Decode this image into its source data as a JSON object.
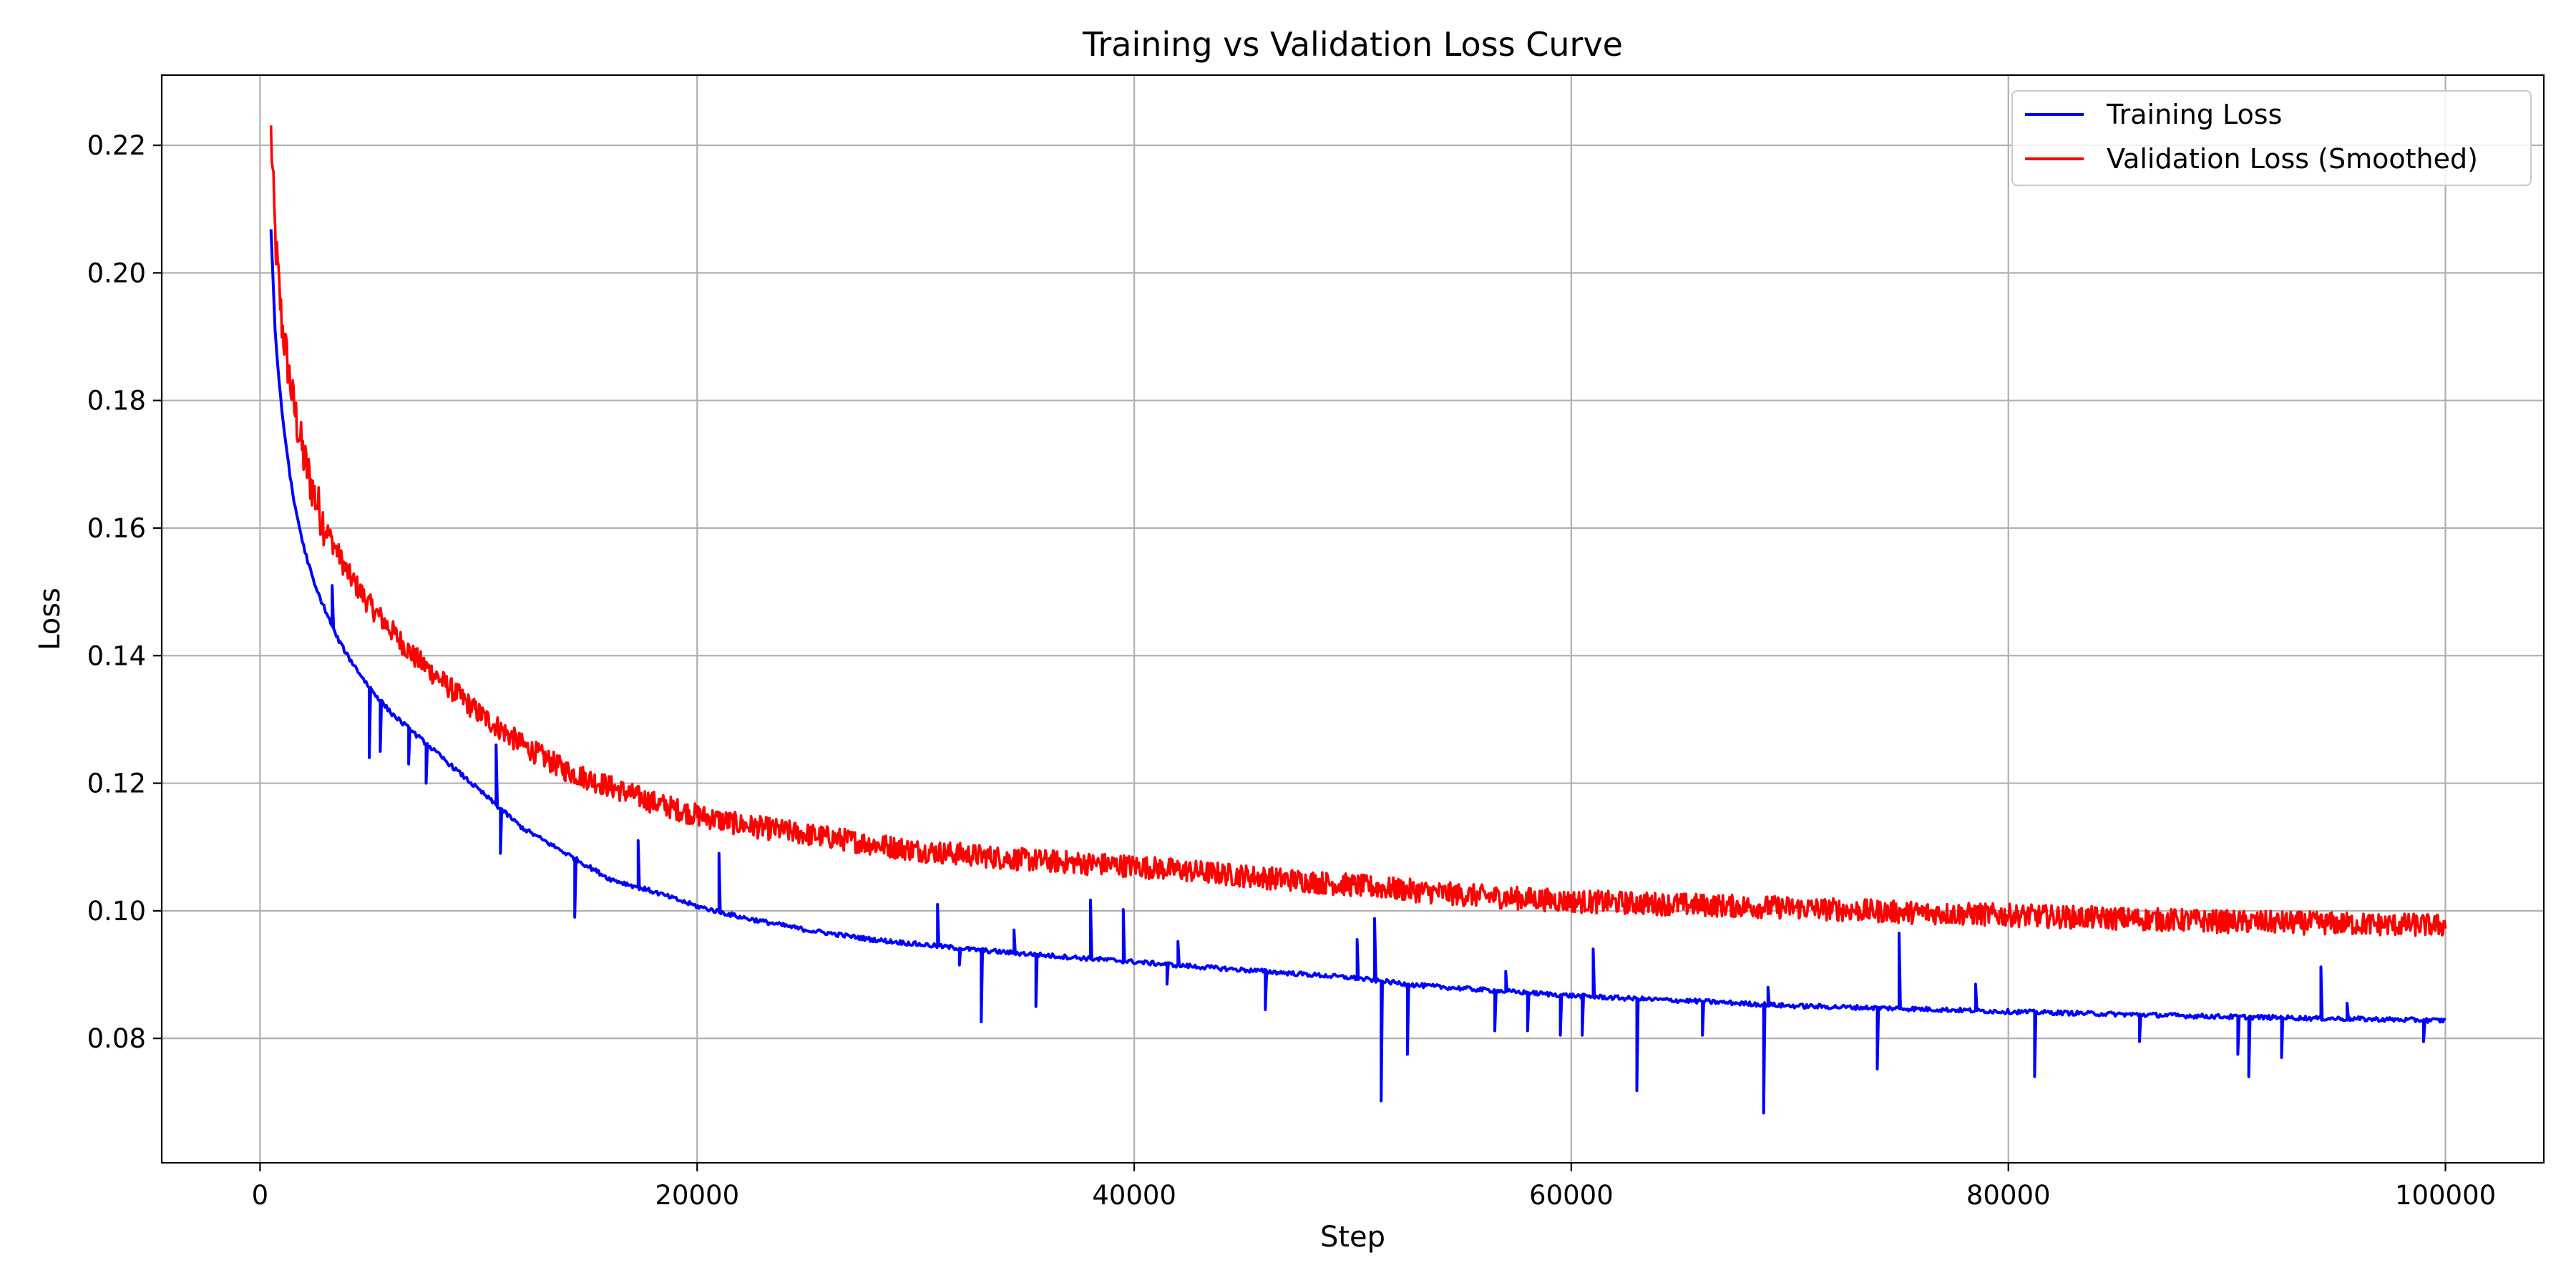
{
  "chart_data": {
    "type": "line",
    "title": "Training vs Validation Loss Curve",
    "xlabel": "Step",
    "ylabel": "Loss",
    "xlim": [
      -4500,
      104500
    ],
    "ylim": [
      0.0605,
      0.231
    ],
    "xticks": [
      0,
      20000,
      40000,
      60000,
      80000,
      100000
    ],
    "yticks": [
      0.08,
      0.1,
      0.12,
      0.14,
      0.16,
      0.18,
      0.2,
      0.22
    ],
    "xtick_labels": [
      "0",
      "20000",
      "40000",
      "60000",
      "80000",
      "100000"
    ],
    "ytick_labels": [
      "0.08",
      "0.10",
      "0.12",
      "0.14",
      "0.16",
      "0.18",
      "0.20",
      "0.22"
    ],
    "grid": true,
    "legend_position": "top-right",
    "series": [
      {
        "name": "Training Loss",
        "color": "#0000ff",
        "x": [
          500,
          700,
          1000,
          1500,
          2000,
          2500,
          3000,
          3500,
          4000,
          5000,
          6000,
          7000,
          8000,
          9000,
          10000,
          11000,
          12000,
          13000,
          14000,
          15000,
          16000,
          18000,
          20000,
          22000,
          25000,
          28000,
          30000,
          33000,
          36000,
          40000,
          43000,
          46000,
          50000,
          53000,
          56000,
          60000,
          63000,
          66000,
          70000,
          75000,
          80000,
          85000,
          90000,
          95000,
          100000
        ],
        "y": [
          0.207,
          0.19,
          0.178,
          0.165,
          0.157,
          0.151,
          0.147,
          0.143,
          0.14,
          0.135,
          0.131,
          0.128,
          0.125,
          0.122,
          0.119,
          0.116,
          0.113,
          0.111,
          0.109,
          0.107,
          0.105,
          0.103,
          0.1007,
          0.099,
          0.097,
          0.0955,
          0.0948,
          0.0938,
          0.093,
          0.092,
          0.0912,
          0.0905,
          0.0895,
          0.0883,
          0.0876,
          0.0867,
          0.0862,
          0.0858,
          0.0851,
          0.0847,
          0.0842,
          0.0838,
          0.0834,
          0.0831,
          0.0828
        ],
        "spikes": [
          {
            "x": 3300,
            "y": 0.151
          },
          {
            "x": 5000,
            "y": 0.124
          },
          {
            "x": 5500,
            "y": 0.125
          },
          {
            "x": 6800,
            "y": 0.123
          },
          {
            "x": 7600,
            "y": 0.12
          },
          {
            "x": 10800,
            "y": 0.126
          },
          {
            "x": 11000,
            "y": 0.109
          },
          {
            "x": 14400,
            "y": 0.099
          },
          {
            "x": 17300,
            "y": 0.111
          },
          {
            "x": 21000,
            "y": 0.109
          },
          {
            "x": 31000,
            "y": 0.101
          },
          {
            "x": 32000,
            "y": 0.0915
          },
          {
            "x": 33000,
            "y": 0.0826
          },
          {
            "x": 34500,
            "y": 0.097
          },
          {
            "x": 35500,
            "y": 0.085
          },
          {
            "x": 38000,
            "y": 0.1017
          },
          {
            "x": 39500,
            "y": 0.1002
          },
          {
            "x": 41500,
            "y": 0.0885
          },
          {
            "x": 42000,
            "y": 0.0952
          },
          {
            "x": 46000,
            "y": 0.0845
          },
          {
            "x": 50200,
            "y": 0.0955
          },
          {
            "x": 51000,
            "y": 0.0988
          },
          {
            "x": 51300,
            "y": 0.0702
          },
          {
            "x": 52500,
            "y": 0.0775
          },
          {
            "x": 56500,
            "y": 0.0812
          },
          {
            "x": 57000,
            "y": 0.0905
          },
          {
            "x": 58000,
            "y": 0.0812
          },
          {
            "x": 59500,
            "y": 0.0805
          },
          {
            "x": 60500,
            "y": 0.0805
          },
          {
            "x": 61000,
            "y": 0.094
          },
          {
            "x": 63000,
            "y": 0.0718
          },
          {
            "x": 66000,
            "y": 0.0805
          },
          {
            "x": 68800,
            "y": 0.0683
          },
          {
            "x": 69000,
            "y": 0.088
          },
          {
            "x": 74000,
            "y": 0.0752
          },
          {
            "x": 75000,
            "y": 0.0965
          },
          {
            "x": 78500,
            "y": 0.0885
          },
          {
            "x": 81200,
            "y": 0.074
          },
          {
            "x": 86000,
            "y": 0.0795
          },
          {
            "x": 90500,
            "y": 0.0775
          },
          {
            "x": 91000,
            "y": 0.074
          },
          {
            "x": 92500,
            "y": 0.077
          },
          {
            "x": 94300,
            "y": 0.0912
          },
          {
            "x": 95500,
            "y": 0.0855
          },
          {
            "x": 99000,
            "y": 0.0795
          }
        ]
      },
      {
        "name": "Validation Loss (Smoothed)",
        "color": "#ff0000",
        "x": [
          500,
          700,
          1000,
          1500,
          2000,
          2500,
          3000,
          4000,
          5000,
          6000,
          7000,
          8000,
          9000,
          10000,
          12000,
          14000,
          16000,
          18000,
          20000,
          22000,
          25000,
          28000,
          30000,
          35000,
          40000,
          45000,
          50000,
          55000,
          60000,
          65000,
          70000,
          75000,
          80000,
          85000,
          90000,
          95000,
          100000
        ],
        "y": [
          0.222,
          0.205,
          0.192,
          0.18,
          0.171,
          0.165,
          0.16,
          0.153,
          0.148,
          0.144,
          0.14,
          0.137,
          0.134,
          0.131,
          0.126,
          0.122,
          0.1195,
          0.117,
          0.115,
          0.1135,
          0.112,
          0.1105,
          0.1095,
          0.108,
          0.107,
          0.1055,
          0.104,
          0.1025,
          0.1015,
          0.101,
          0.1005,
          0.0998,
          0.0993,
          0.0988,
          0.0983,
          0.098,
          0.0977
        ],
        "noise_amplitude": 0.0018
      }
    ]
  }
}
